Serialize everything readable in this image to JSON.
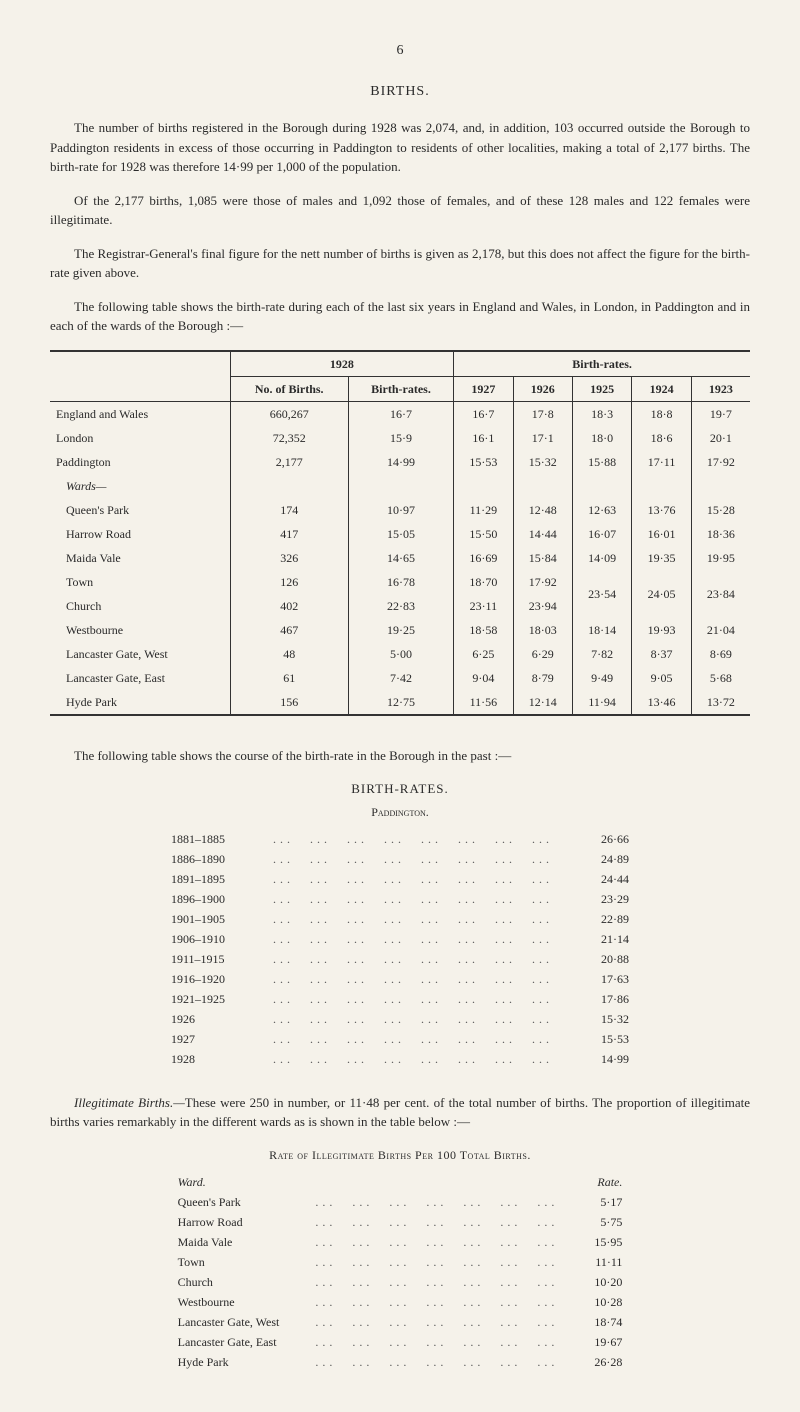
{
  "page_number": "6",
  "section_title": "BIRTHS.",
  "paragraphs": {
    "p1": "The number of births registered in the Borough during 1928 was 2,074, and, in addition, 103 occurred outside the Borough to Paddington residents in excess of those occurring in Paddington to residents of other localities, making a total of 2,177 births. The birth-rate for 1928 was therefore 14·99 per 1,000 of the population.",
    "p2": "Of the 2,177 births, 1,085 were those of males and 1,092 those of females, and of these 128 males and 122 females were illegitimate.",
    "p3": "The Registrar-General's final figure for the nett number of births is given as 2,178, but this does not affect the figure for the birth-rate given above.",
    "p4": "The following table shows the birth-rate during each of the last six years in England and Wales, in London, in Paddington and in each of the wards of the Borough :—"
  },
  "table1": {
    "head": {
      "c1928": "1928",
      "birthrates": "Birth-rates.",
      "no_births": "No. of Births.",
      "birth_rates_col": "Birth-rates.",
      "y1927": "1927",
      "y1926": "1926",
      "y1925": "1925",
      "y1924": "1924",
      "y1923": "1923"
    },
    "rows": [
      {
        "label": "England and Wales",
        "indent": false,
        "nb": "660,267",
        "br": "16·7",
        "y27": "16·7",
        "y26": "17·8",
        "y25": "18·3",
        "y24": "18·8",
        "y23": "19·7"
      },
      {
        "label": "London",
        "indent": false,
        "nb": "72,352",
        "br": "15·9",
        "y27": "16·1",
        "y26": "17·1",
        "y25": "18·0",
        "y24": "18·6",
        "y23": "20·1"
      },
      {
        "label": "Paddington",
        "indent": false,
        "nb": "2,177",
        "br": "14·99",
        "y27": "15·53",
        "y26": "15·32",
        "y25": "15·88",
        "y24": "17·11",
        "y23": "17·92"
      },
      {
        "label": "Wards—",
        "indent": true,
        "italic": true,
        "nb": "",
        "br": "",
        "y27": "",
        "y26": "",
        "y25": "",
        "y24": "",
        "y23": ""
      },
      {
        "label": "Queen's Park",
        "indent": true,
        "nb": "174",
        "br": "10·97",
        "y27": "11·29",
        "y26": "12·48",
        "y25": "12·63",
        "y24": "13·76",
        "y23": "15·28"
      },
      {
        "label": "Harrow Road",
        "indent": true,
        "nb": "417",
        "br": "15·05",
        "y27": "15·50",
        "y26": "14·44",
        "y25": "16·07",
        "y24": "16·01",
        "y23": "18·36"
      },
      {
        "label": "Maida Vale",
        "indent": true,
        "nb": "326",
        "br": "14·65",
        "y27": "16·69",
        "y26": "15·84",
        "y25": "14·09",
        "y24": "19·35",
        "y23": "19·95"
      }
    ],
    "town_row": {
      "label": "Town",
      "nb": "126",
      "br": "16·78",
      "y27": "18·70",
      "y26": "17·92"
    },
    "church_row": {
      "label": "Church",
      "nb": "402",
      "br": "22·83",
      "y27": "23·11",
      "y26": "23·94"
    },
    "merged": {
      "y25": "23·54",
      "y24": "24·05",
      "y23": "23·84"
    },
    "rows2": [
      {
        "label": "Westbourne",
        "indent": true,
        "nb": "467",
        "br": "19·25",
        "y27": "18·58",
        "y26": "18·03",
        "y25": "18·14",
        "y24": "19·93",
        "y23": "21·04"
      },
      {
        "label": "Lancaster Gate, West",
        "indent": true,
        "nb": "48",
        "br": "5·00",
        "y27": "6·25",
        "y26": "6·29",
        "y25": "7·82",
        "y24": "8·37",
        "y23": "8·69"
      },
      {
        "label": "Lancaster Gate, East",
        "indent": true,
        "nb": "61",
        "br": "7·42",
        "y27": "9·04",
        "y26": "8·79",
        "y25": "9·49",
        "y24": "9·05",
        "y23": "5·68"
      },
      {
        "label": "Hyde Park",
        "indent": true,
        "nb": "156",
        "br": "12·75",
        "y27": "11·56",
        "y26": "12·14",
        "y25": "11·94",
        "y24": "13·46",
        "y23": "13·72"
      }
    ]
  },
  "transition_text": "The following table shows the course of the birth-rate in the Borough in the past :—",
  "birth_rates_title": "BIRTH-RATES.",
  "paddington_label": "Paddington.",
  "rates_rows": [
    {
      "period": "1881–1885",
      "val": "26·66"
    },
    {
      "period": "1886–1890",
      "val": "24·89"
    },
    {
      "period": "1891–1895",
      "val": "24·44"
    },
    {
      "period": "1896–1900",
      "val": "23·29"
    },
    {
      "period": "1901–1905",
      "val": "22·89"
    },
    {
      "period": "1906–1910",
      "val": "21·14"
    },
    {
      "period": "1911–1915",
      "val": "20·88"
    },
    {
      "period": "1916–1920",
      "val": "17·63"
    },
    {
      "period": "1921–1925",
      "val": "17·86"
    },
    {
      "period": "1926",
      "val": "15·32"
    },
    {
      "period": "1927",
      "val": "15·53"
    },
    {
      "period": "1928",
      "val": "14·99"
    }
  ],
  "illeg_heading": "Illegitimate Births.—",
  "illeg_text": "These were 250 in number, or 11·48 per cent. of the total number of births. The proportion of illegitimate births varies remarkably in the different wards as is shown in the table below :—",
  "illeg_table_title": "Rate of Illegitimate Births Per 100 Total Births.",
  "ward_label": "Ward.",
  "rate_label": "Rate.",
  "ward_rows": [
    {
      "ward": "Queen's Park",
      "rate": "5·17"
    },
    {
      "ward": "Harrow Road",
      "rate": "5·75"
    },
    {
      "ward": "Maida Vale",
      "rate": "15·95"
    },
    {
      "ward": "Town",
      "rate": "11·11"
    },
    {
      "ward": "Church",
      "rate": "10·20"
    },
    {
      "ward": "Westbourne",
      "rate": "10·28"
    },
    {
      "ward": "Lancaster Gate, West",
      "rate": "18·74"
    },
    {
      "ward": "Lancaster Gate, East",
      "rate": "19·67"
    },
    {
      "ward": "Hyde Park",
      "rate": "26·28"
    }
  ],
  "colors": {
    "bg": "#f5f2ea",
    "text": "#2a2a2a",
    "rule": "#333333"
  }
}
